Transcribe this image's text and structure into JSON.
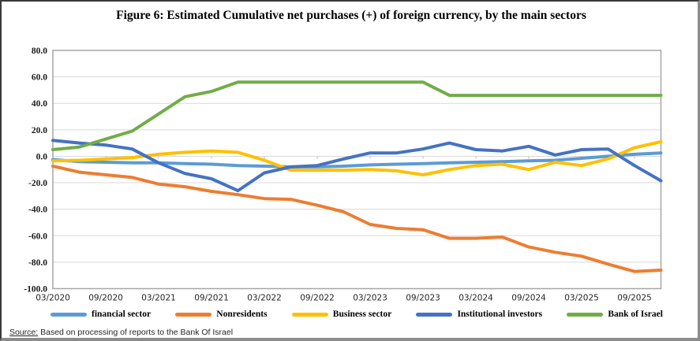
{
  "title": "Figure 6:  Estimated Cumulative net purchases (+) of foreign currency, by the main sectors",
  "source": {
    "label": "Source:",
    "text": " Based on processing  of reports  to the Bank Of Israel"
  },
  "chart_data": {
    "type": "line",
    "x": [
      "03/2020",
      "06/2020",
      "09/2020",
      "12/2020",
      "03/2021",
      "06/2021",
      "09/2021",
      "12/2021",
      "03/2022",
      "06/2022",
      "09/2022",
      "12/2022",
      "03/2023",
      "06/2023",
      "09/2023",
      "12/2023",
      "03/2024",
      "06/2024",
      "09/2024",
      "12/2024",
      "03/2025",
      "06/2025",
      "09/2025",
      "12/2025"
    ],
    "x_tick_labels": [
      "03/2020",
      "09/2020",
      "03/2021",
      "09/2021",
      "03/2022",
      "09/2022",
      "03/2023",
      "09/2023",
      "03/2024",
      "09/2024",
      "03/2025",
      "09/2025"
    ],
    "y_tick_labels": [
      "80.0",
      "60.0",
      "40.0",
      "20.0",
      "0.0",
      "-20.0",
      "-40.0",
      "-60.0",
      "-80.0",
      "-100.0"
    ],
    "ylim": [
      -100,
      80
    ],
    "ytick_step": 20,
    "grid": true,
    "legend_position": "bottom",
    "colors": {
      "grid": "#D9D9D9",
      "plot_border": "#A6A6A6",
      "tick": "#BFBFBF",
      "axis_text": "#1a1a1a"
    },
    "series": [
      {
        "name": "financial sector",
        "color": "#5B9BD5",
        "values": [
          -2.5,
          -4,
          -4.5,
          -5,
          -5,
          -5.5,
          -6,
          -7,
          -7.5,
          -8,
          -8,
          -7.5,
          -6.5,
          -6,
          -5.5,
          -5,
          -4.5,
          -4,
          -3.5,
          -3,
          -1.5,
          0,
          1.5,
          2.5
        ]
      },
      {
        "name": "Nonresidents",
        "color": "#ED7D31",
        "values": [
          -7.5,
          -12,
          -14,
          -16,
          -21,
          -23,
          -26.5,
          -29,
          -32,
          -32.5,
          -37,
          -42,
          -51.5,
          -54.5,
          -55.5,
          -62,
          -62,
          -61,
          -68.5,
          -72.5,
          -75.5,
          -81.5,
          -87,
          -86
        ]
      },
      {
        "name": "Business sector",
        "color": "#FFC000",
        "values": [
          -3.5,
          -3,
          -2,
          -1,
          1.5,
          3,
          4,
          3,
          -3,
          -10.5,
          -10.5,
          -10.5,
          -10,
          -11,
          -14,
          -10,
          -7,
          -6,
          -10,
          -4.5,
          -7,
          -2,
          6.5,
          11
        ]
      },
      {
        "name": "Institutional investors",
        "color": "#4472C4",
        "values": [
          12,
          10,
          8.5,
          5.5,
          -5,
          -13,
          -17,
          -26,
          -12.5,
          -8,
          -7,
          -2,
          2.5,
          2.5,
          5.5,
          10,
          5,
          4,
          7.5,
          1,
          5,
          5.5,
          -7,
          -18.5
        ]
      },
      {
        "name": "Bank of Israel",
        "color": "#70AD47",
        "values": [
          5,
          7,
          13,
          19,
          32,
          45,
          49,
          56,
          56,
          56,
          56,
          56,
          56,
          56,
          56,
          46,
          46,
          46,
          46,
          46,
          46,
          46,
          46,
          46
        ]
      }
    ]
  }
}
